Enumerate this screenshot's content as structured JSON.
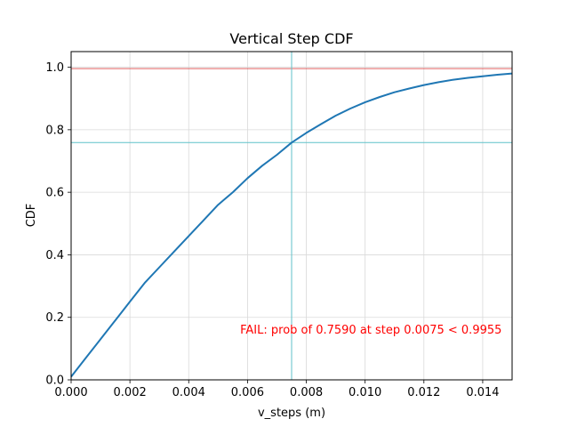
{
  "chart_data": {
    "type": "line",
    "title": "Vertical Step CDF",
    "xlabel": "v_steps (m)",
    "ylabel": "CDF",
    "xlim": [
      0,
      0.015
    ],
    "ylim": [
      0,
      1.05
    ],
    "grid": true,
    "x_ticks": [
      "0.000",
      "0.002",
      "0.004",
      "0.006",
      "0.008",
      "0.010",
      "0.012",
      "0.014"
    ],
    "x_tick_values": [
      0,
      0.002,
      0.004,
      0.006,
      0.008,
      0.01,
      0.012,
      0.014
    ],
    "y_ticks": [
      "0.0",
      "0.2",
      "0.4",
      "0.6",
      "0.8",
      "1.0"
    ],
    "y_tick_values": [
      0,
      0.2,
      0.4,
      0.6,
      0.8,
      1.0
    ],
    "series": [
      {
        "color": "#1f77b4",
        "x": [
          0,
          0.0005,
          0.001,
          0.0015,
          0.002,
          0.0025,
          0.003,
          0.0035,
          0.004,
          0.0045,
          0.005,
          0.0055,
          0.006,
          0.0065,
          0.007,
          0.0075,
          0.008,
          0.0085,
          0.009,
          0.0095,
          0.01,
          0.0105,
          0.011,
          0.0115,
          0.012,
          0.0125,
          0.013,
          0.0135,
          0.014,
          0.0145,
          0.015
        ],
        "y": [
          0.01,
          0.07,
          0.13,
          0.19,
          0.25,
          0.31,
          0.36,
          0.41,
          0.46,
          0.51,
          0.56,
          0.6,
          0.645,
          0.685,
          0.72,
          0.759,
          0.79,
          0.818,
          0.845,
          0.868,
          0.888,
          0.905,
          0.92,
          0.932,
          0.943,
          0.952,
          0.96,
          0.966,
          0.971,
          0.976,
          0.98
        ]
      }
    ],
    "reference_lines": {
      "threshold_y": 0.9955,
      "threshold_color": "#e06060",
      "marker_x": 0.0075,
      "marker_y": 0.759,
      "marker_color": "#5fc2c9"
    },
    "annotation": {
      "text": "FAIL: prob of 0.7590 at step 0.0075 < 0.9955",
      "color": "#ff0000",
      "x": 0.0102,
      "y": 0.16
    }
  }
}
